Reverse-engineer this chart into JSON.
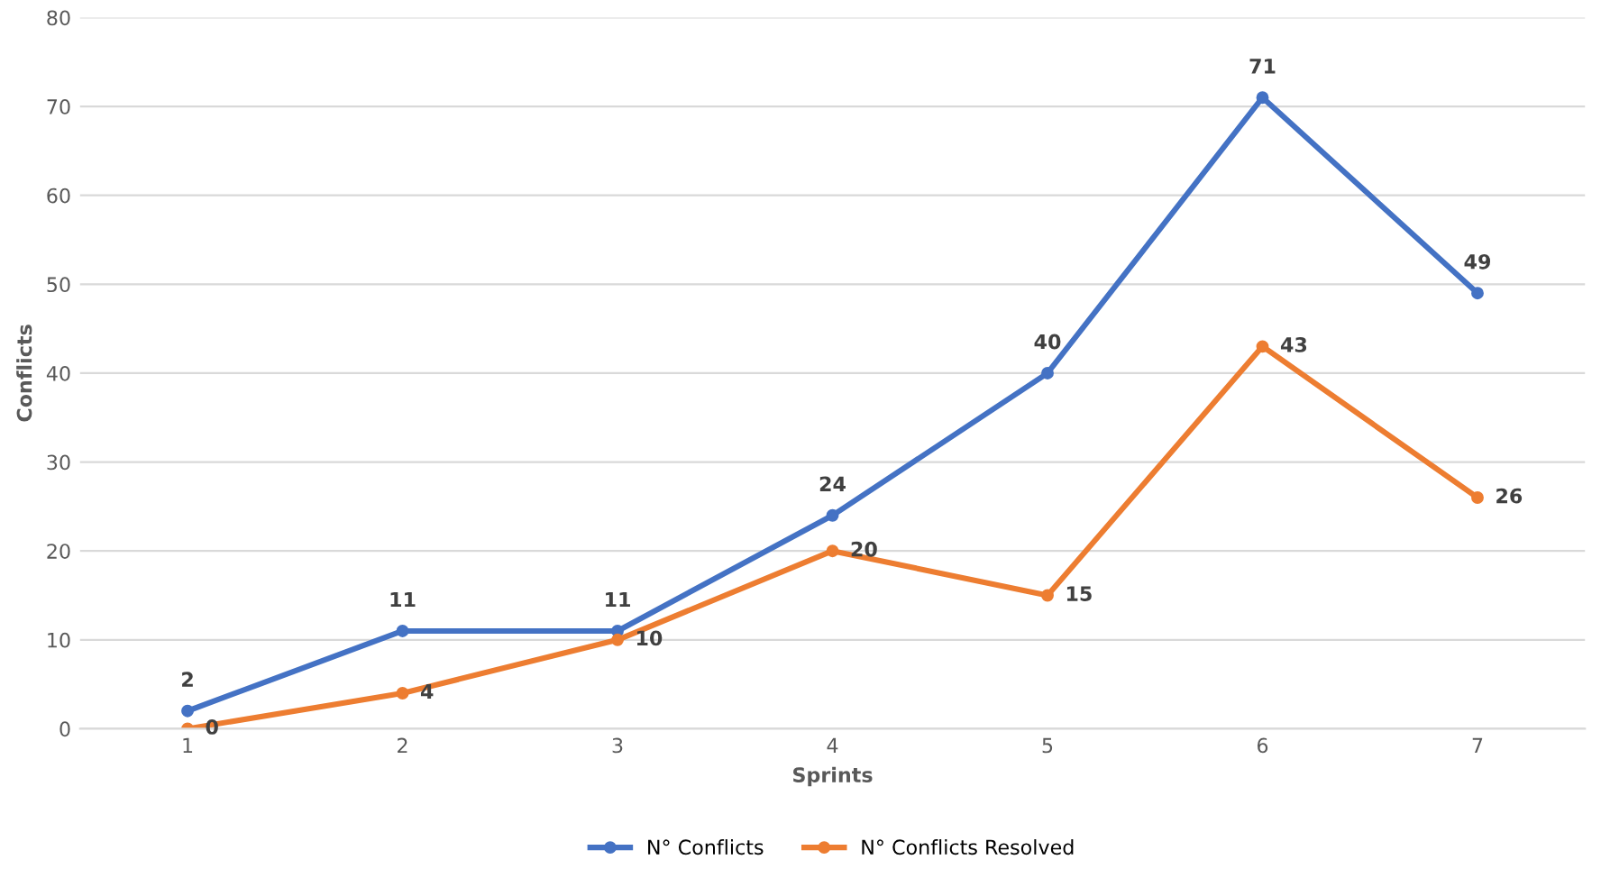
{
  "chart_data": {
    "type": "line",
    "xlabel": "Sprints",
    "ylabel": "Conflicts",
    "categories": [
      "1",
      "2",
      "3",
      "4",
      "5",
      "6",
      "7"
    ],
    "series": [
      {
        "name": "N° Conflicts",
        "color": "#4472c4",
        "values": [
          2,
          11,
          11,
          24,
          40,
          71,
          49
        ]
      },
      {
        "name": "N° Conflicts Resolved",
        "color": "#ed7d31",
        "values": [
          0,
          4,
          10,
          20,
          15,
          43,
          26
        ]
      }
    ],
    "ylim": [
      0,
      80
    ],
    "yticks": [
      0,
      10,
      20,
      30,
      40,
      50,
      60,
      70,
      80
    ],
    "grid": "y",
    "legend": "bottom",
    "marker": "circle",
    "line_style": "solid",
    "data_labels": true
  }
}
